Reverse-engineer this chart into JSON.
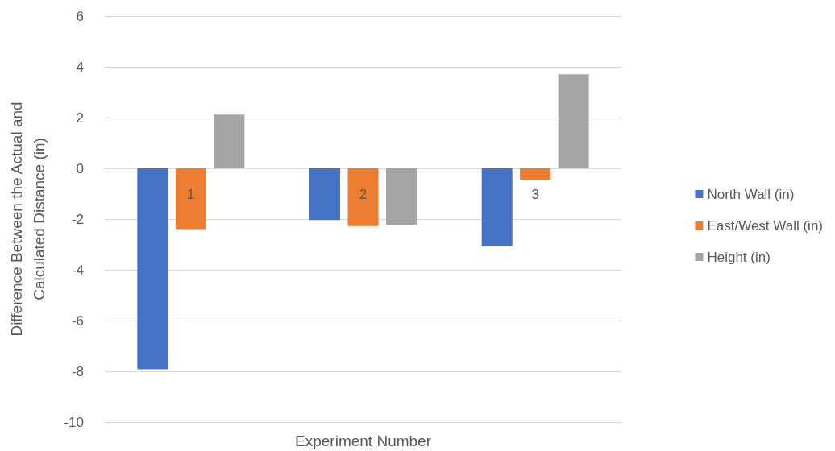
{
  "chart_data": {
    "type": "bar",
    "xlabel": "Experiment Number",
    "ylabel": "Difference Between the Actual and\nCalculated Distance (in)",
    "categories": [
      "1",
      "2",
      "3"
    ],
    "series": [
      {
        "name": "North Wall (in)",
        "color": "#4472c4",
        "values": [
          -7.92,
          -2.04,
          -3.07
        ]
      },
      {
        "name": "East/West Wall (in)",
        "color": "#ed7d31",
        "values": [
          -2.4,
          -2.28,
          -0.46
        ]
      },
      {
        "name": "Height (in)",
        "color": "#a5a5a5",
        "values": [
          2.12,
          -2.22,
          3.71
        ]
      }
    ],
    "ylim": [
      -10,
      6
    ],
    "yticks": [
      -10,
      -8,
      -6,
      -4,
      -2,
      0,
      2,
      4,
      6
    ],
    "grid": "y",
    "legend": "right"
  }
}
